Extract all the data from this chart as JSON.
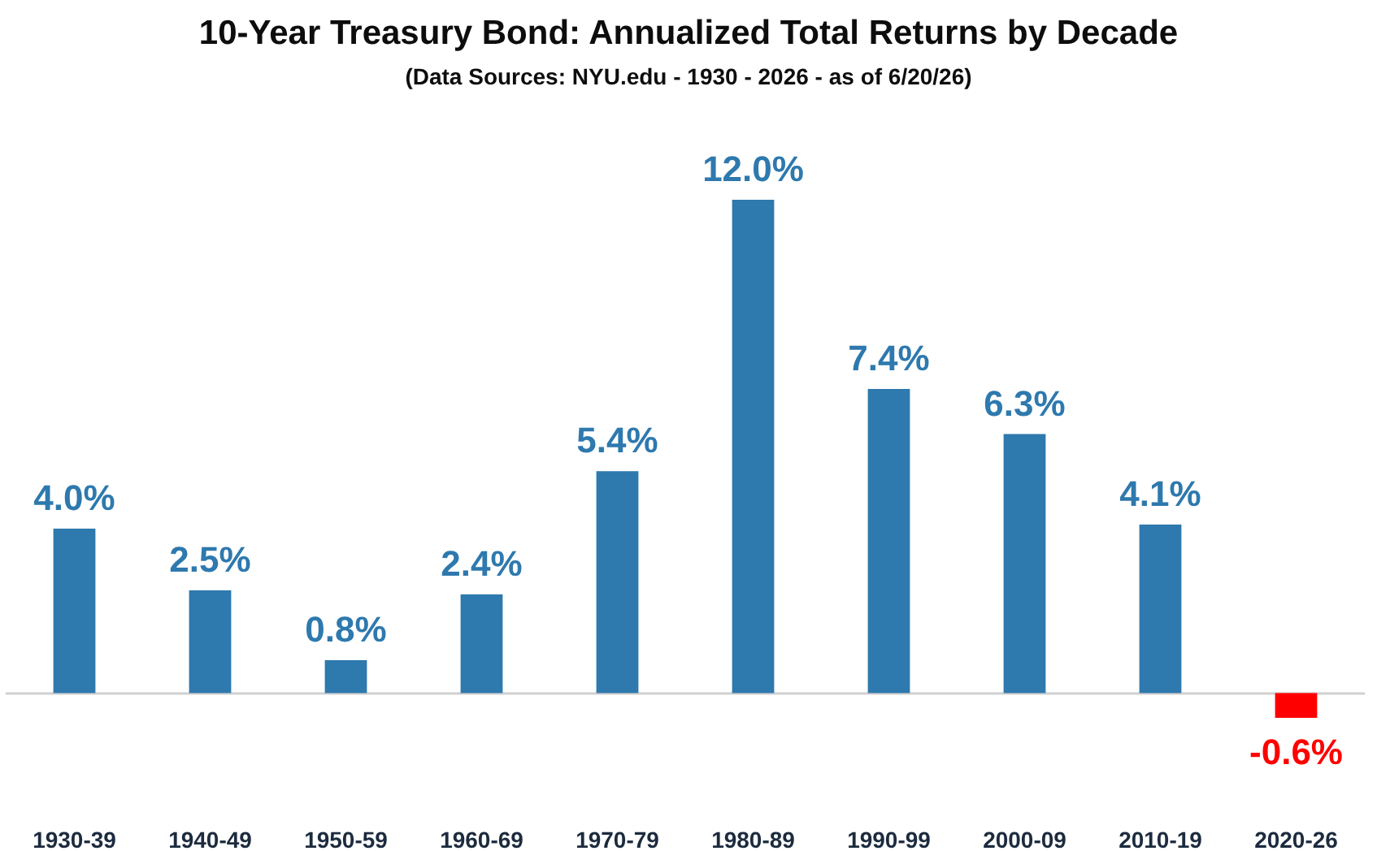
{
  "chart_data": {
    "type": "bar",
    "title": "10-Year Treasury Bond: Annualized Total Returns by Decade",
    "subtitle": "(Data Sources: NYU.edu - 1930 - 2026 - as of 6/20/26)",
    "categories": [
      "1930-39",
      "1940-49",
      "1950-59",
      "1960-69",
      "1970-79",
      "1980-89",
      "1990-99",
      "2000-09",
      "2010-19",
      "2020-26"
    ],
    "values": [
      4.0,
      2.5,
      0.8,
      2.4,
      5.4,
      12.0,
      7.4,
      6.3,
      4.1,
      -0.6
    ],
    "colors": [
      "#2e79ae",
      "#2e79ae",
      "#2e79ae",
      "#2e79ae",
      "#2e79ae",
      "#2e79ae",
      "#2e79ae",
      "#2e79ae",
      "#2e79ae",
      "#ff0000"
    ],
    "value_labels": [
      "4.0%",
      "2.5%",
      "0.8%",
      "2.4%",
      "5.4%",
      "12.0%",
      "7.4%",
      "6.3%",
      "4.1%",
      "-0.6%"
    ]
  }
}
